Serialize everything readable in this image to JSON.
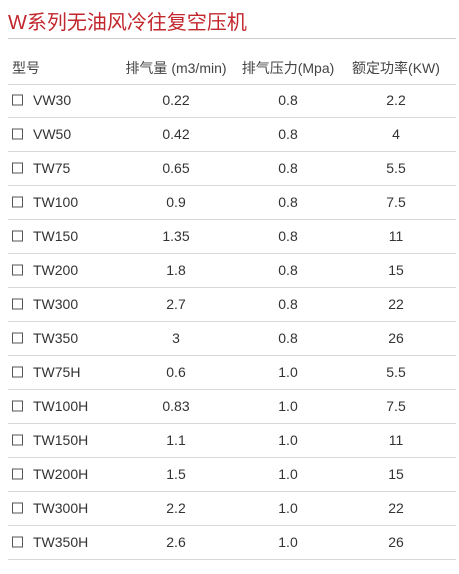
{
  "header": {
    "title": "W系列无油风冷往复空压机"
  },
  "table": {
    "columns": [
      "型号",
      "排气量 (m3/min)",
      "排气压力(Mpa)",
      "额定功率(KW)"
    ],
    "rows": [
      [
        "VW30",
        "0.22",
        "0.8",
        "2.2"
      ],
      [
        "VW50",
        "0.42",
        "0.8",
        "4"
      ],
      [
        "TW75",
        "0.65",
        "0.8",
        "5.5"
      ],
      [
        "TW100",
        "0.9",
        "0.8",
        "7.5"
      ],
      [
        "TW150",
        "1.35",
        "0.8",
        "11"
      ],
      [
        "TW200",
        "1.8",
        "0.8",
        "15"
      ],
      [
        "TW300",
        "2.7",
        "0.8",
        "22"
      ],
      [
        "TW350",
        "3",
        "0.8",
        "26"
      ],
      [
        "TW75H",
        "0.6",
        "1.0",
        "5.5"
      ],
      [
        "TW100H",
        "0.83",
        "1.0",
        "7.5"
      ],
      [
        "TW150H",
        "1.1",
        "1.0",
        "11"
      ],
      [
        "TW200H",
        "1.5",
        "1.0",
        "15"
      ],
      [
        "TW300H",
        "2.2",
        "1.0",
        "22"
      ],
      [
        "TW350H",
        "2.6",
        "1.0",
        "26"
      ]
    ]
  }
}
